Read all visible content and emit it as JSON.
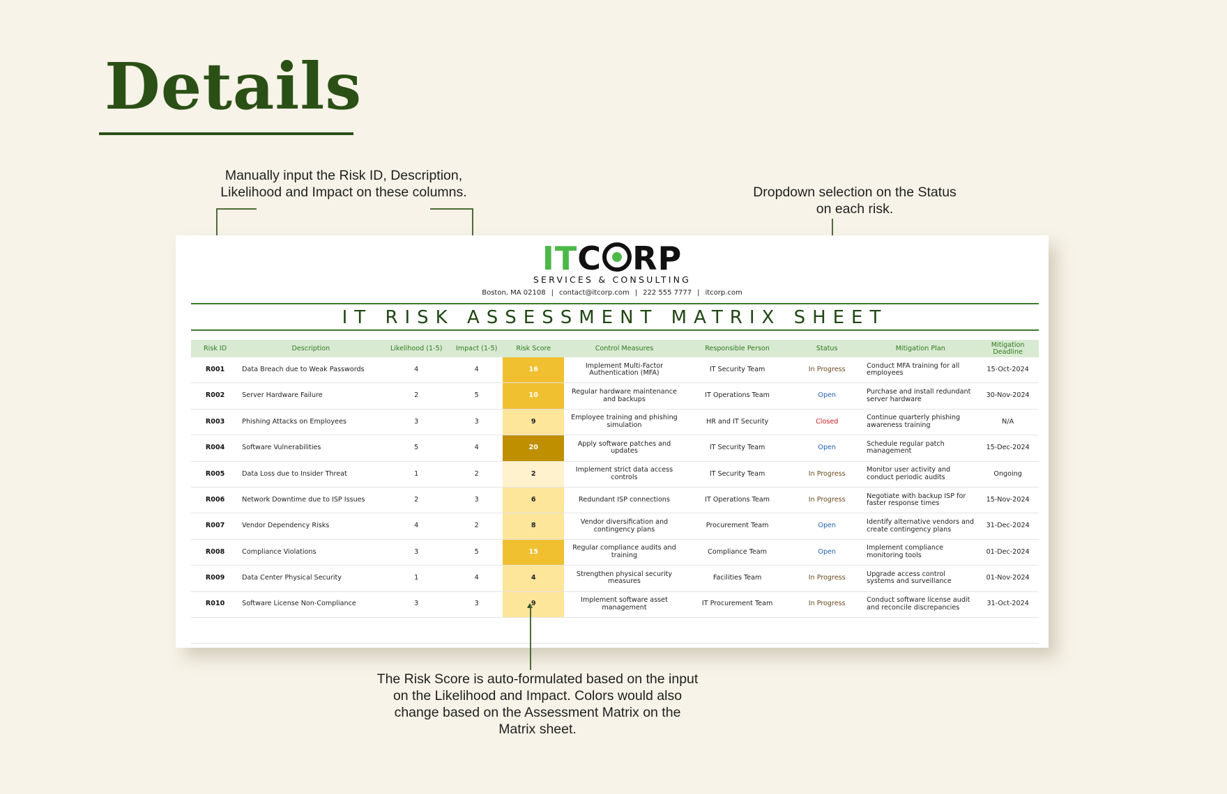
{
  "page": {
    "title": "Details"
  },
  "annotations": {
    "input_columns": "Manually input the Risk ID, Description, Likelihood and Impact on these columns.",
    "status_dropdown": "Dropdown selection on the Status on each risk.",
    "risk_score": "The Risk Score is auto-formulated based on the input on the Likelihood and Impact. Colors would also change based on the Assessment Matrix on the Matrix sheet."
  },
  "sheet": {
    "logo": {
      "part1": "IT",
      "part2_c": "C",
      "part2_rest": "RP",
      "tagline": "SERVICES & CONSULTING"
    },
    "contact": {
      "address": "Boston, MA 02108",
      "email": "contact@itcorp.com",
      "phone": "222 555 7777",
      "website": "itcorp.com",
      "separator": "|"
    },
    "title": "IT RISK ASSESSMENT MATRIX SHEET",
    "columns": [
      "Risk ID",
      "Description",
      "Likelihood (1-5)",
      "Impact (1-5)",
      "Risk Score",
      "Control Measures",
      "Responsible Person",
      "Status",
      "Mitigation Plan",
      "Mitigation Deadline"
    ],
    "rows": [
      {
        "id": "R001",
        "description": "Data Breach due to Weak Passwords",
        "likelihood": "4",
        "impact": "4",
        "score": "16",
        "score_color": "#f0c030",
        "score_text": "#ffffff",
        "control": "Implement Multi-Factor Authentication (MFA)",
        "owner": "IT Security Team",
        "status": "In Progress",
        "plan": "Conduct MFA training for all employees",
        "deadline": "15-Oct-2024"
      },
      {
        "id": "R002",
        "description": "Server Hardware Failure",
        "likelihood": "2",
        "impact": "5",
        "score": "10",
        "score_color": "#f0c030",
        "score_text": "#ffffff",
        "control": "Regular hardware maintenance and backups",
        "owner": "IT Operations Team",
        "status": "Open",
        "plan": "Purchase and install redundant server hardware",
        "deadline": "30-Nov-2024"
      },
      {
        "id": "R003",
        "description": "Phishing Attacks on Employees",
        "likelihood": "3",
        "impact": "3",
        "score": "9",
        "score_color": "#fde59a",
        "score_text": "#222222",
        "control": "Employee training and phishing simulation",
        "owner": "HR and IT Security",
        "status": "Closed",
        "plan": "Continue quarterly phishing awareness training",
        "deadline": "N/A"
      },
      {
        "id": "R004",
        "description": "Software Vulnerabilities",
        "likelihood": "5",
        "impact": "4",
        "score": "20",
        "score_color": "#bf8f00",
        "score_text": "#ffffff",
        "control": "Apply software patches and updates",
        "owner": "IT Security Team",
        "status": "Open",
        "plan": "Schedule regular patch management",
        "deadline": "15-Dec-2024"
      },
      {
        "id": "R005",
        "description": "Data Loss due to Insider Threat",
        "likelihood": "1",
        "impact": "2",
        "score": "2",
        "score_color": "#fff2cc",
        "score_text": "#222222",
        "control": "Implement strict data access controls",
        "owner": "IT Security Team",
        "status": "In Progress",
        "plan": "Monitor user activity and conduct periodic audits",
        "deadline": "Ongoing"
      },
      {
        "id": "R006",
        "description": "Network Downtime due to ISP Issues",
        "likelihood": "2",
        "impact": "3",
        "score": "6",
        "score_color": "#fde59a",
        "score_text": "#222222",
        "control": "Redundant ISP connections",
        "owner": "IT Operations Team",
        "status": "In Progress",
        "plan": "Negotiate with backup ISP for faster response times",
        "deadline": "15-Nov-2024"
      },
      {
        "id": "R007",
        "description": "Vendor Dependency Risks",
        "likelihood": "4",
        "impact": "2",
        "score": "8",
        "score_color": "#fde59a",
        "score_text": "#222222",
        "control": "Vendor diversification and contingency plans",
        "owner": "Procurement Team",
        "status": "Open",
        "plan": "Identify alternative vendors and create contingency plans",
        "deadline": "31-Dec-2024"
      },
      {
        "id": "R008",
        "description": "Compliance Violations",
        "likelihood": "3",
        "impact": "5",
        "score": "15",
        "score_color": "#f0c030",
        "score_text": "#ffffff",
        "control": "Regular compliance audits and training",
        "owner": "Compliance Team",
        "status": "Open",
        "plan": "Implement compliance monitoring tools",
        "deadline": "01-Dec-2024"
      },
      {
        "id": "R009",
        "description": "Data Center Physical Security",
        "likelihood": "1",
        "impact": "4",
        "score": "4",
        "score_color": "#fde59a",
        "score_text": "#222222",
        "control": "Strengthen physical security measures",
        "owner": "Facilities Team",
        "status": "In Progress",
        "plan": "Upgrade access control systems and surveillance",
        "deadline": "01-Nov-2024"
      },
      {
        "id": "R010",
        "description": "Software License Non-Compliance",
        "likelihood": "3",
        "impact": "3",
        "score": "9",
        "score_color": "#fde59a",
        "score_text": "#222222",
        "control": "Implement software asset management",
        "owner": "IT Procurement Team",
        "status": "In Progress",
        "plan": "Conduct software license audit and reconcile discrepancies",
        "deadline": "31-Oct-2024"
      }
    ],
    "status_colors": {
      "Open": "#1c5fb3",
      "In Progress": "#6a4a1f",
      "Closed": "#c41a1a"
    }
  },
  "colors": {
    "background": "#f7f3e8",
    "title_green": "#2b5016",
    "brand_green": "#4cb847",
    "header_fill": "#d9ead3",
    "header_text": "#2f7a1f"
  }
}
